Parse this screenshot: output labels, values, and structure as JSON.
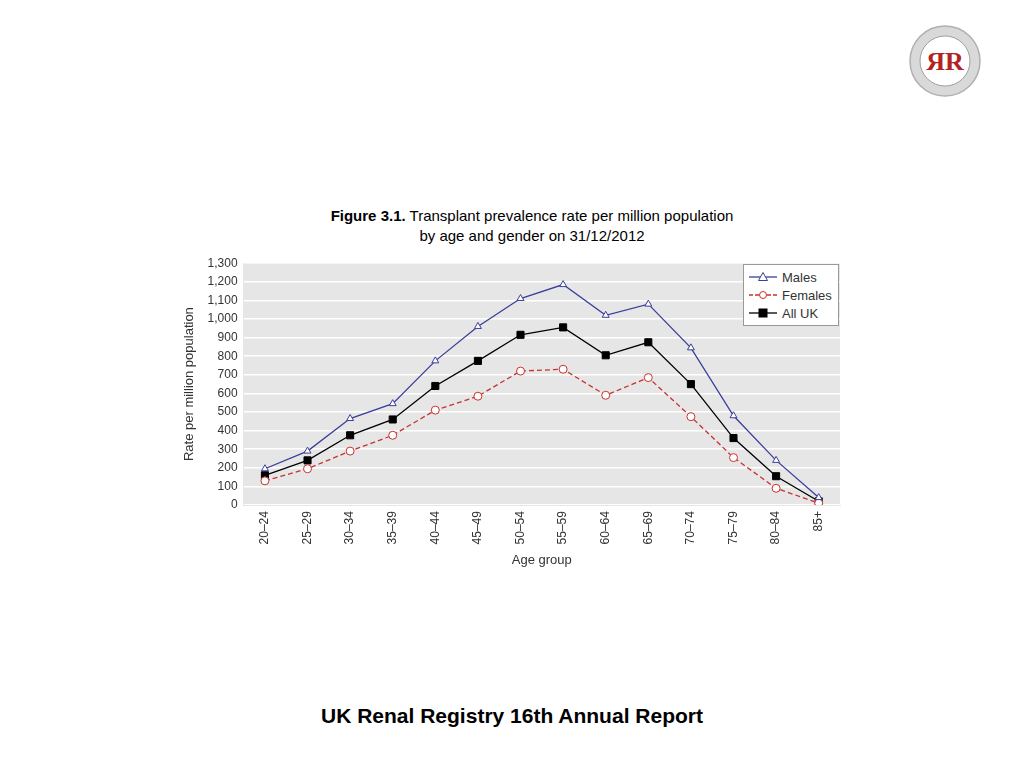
{
  "page": {
    "figure_label": "Figure 3.1.",
    "title_lines": [
      "Transplant prevalence rate per million population",
      "by age and gender on 31/12/2012"
    ],
    "footer": "UK Renal Registry 16th Annual Report",
    "logo": "ЯR"
  },
  "chart_data": {
    "type": "line",
    "x_label": "Age group",
    "y_label": "Rate per million population",
    "categories": [
      "20–24",
      "25–29",
      "30–34",
      "35–39",
      "40–44",
      "45–49",
      "50–54",
      "55–59",
      "60–64",
      "65–69",
      "70–74",
      "75–79",
      "80–84",
      "85+"
    ],
    "series": [
      {
        "name": "Males",
        "color": "#3b3f98",
        "marker": "open_triangle",
        "line_style": "solid",
        "values": [
          195,
          290,
          465,
          545,
          775,
          960,
          1110,
          1185,
          1020,
          1080,
          845,
          480,
          240,
          40
        ]
      },
      {
        "name": "Females",
        "color": "#c8322d",
        "marker": "open_circle",
        "line_style": "dashed",
        "values": [
          130,
          195,
          290,
          375,
          510,
          585,
          720,
          730,
          590,
          685,
          475,
          255,
          90,
          10
        ]
      },
      {
        "name": "All UK",
        "color": "#000000",
        "marker": "filled_square",
        "line_style": "solid",
        "values": [
          160,
          240,
          375,
          460,
          640,
          775,
          915,
          955,
          805,
          875,
          650,
          360,
          155,
          20
        ]
      }
    ],
    "ylim": [
      0,
      1300
    ],
    "yticks": [
      0,
      100,
      200,
      300,
      400,
      500,
      600,
      700,
      800,
      900,
      {
        "value": 1000,
        "label": "1,000"
      },
      {
        "value": 1100,
        "label": "1,100"
      },
      {
        "value": 1200,
        "label": "1,200"
      },
      {
        "value": 1300,
        "label": "1,300"
      }
    ],
    "grid": true,
    "legend": "top right"
  }
}
